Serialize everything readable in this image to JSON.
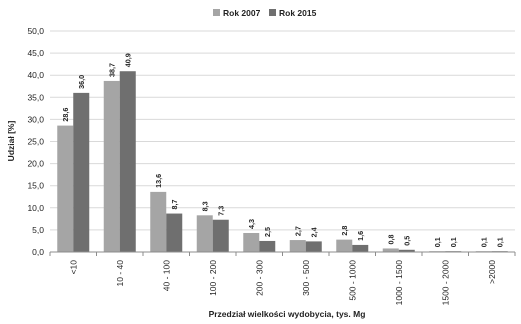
{
  "chart_data": {
    "type": "bar",
    "categories": [
      "<10",
      "10 - 40",
      "40 - 100",
      "100 - 200",
      "200 - 300",
      "300 - 500",
      "500 - 1000",
      "1000 - 1500",
      "1500 - 2000",
      ">2000"
    ],
    "series": [
      {
        "name": "Rok 2007",
        "values": [
          28.6,
          38.7,
          13.6,
          8.3,
          4.3,
          2.7,
          2.8,
          0.8,
          0.1,
          0.1
        ],
        "labels": [
          "28,6",
          "38,7",
          "13,6",
          "8,3",
          "4,3",
          "2,7",
          "2,8",
          "0,8",
          "0,1",
          "0,1"
        ],
        "color": "#a5a5a5"
      },
      {
        "name": "Rok 2015",
        "values": [
          36.0,
          40.9,
          8.7,
          7.3,
          2.5,
          2.4,
          1.6,
          0.5,
          0.1,
          0.1
        ],
        "labels": [
          "36,0",
          "40,9",
          "8,7",
          "7,3",
          "2,5",
          "2,4",
          "1,6",
          "0,5",
          "0,1",
          "0,1"
        ],
        "color": "#6f6f6f"
      }
    ],
    "xlabel": "Przedział wielkości wydobycia, tys. Mg",
    "ylabel": "Udział [%]",
    "ylim": [
      0,
      50
    ],
    "yticks": [
      "0,0",
      "5,0",
      "10,0",
      "15,0",
      "20,0",
      "25,0",
      "30,0",
      "35,0",
      "40,0",
      "45,0",
      "50,0"
    ],
    "grid": true,
    "legend": "top-center"
  }
}
